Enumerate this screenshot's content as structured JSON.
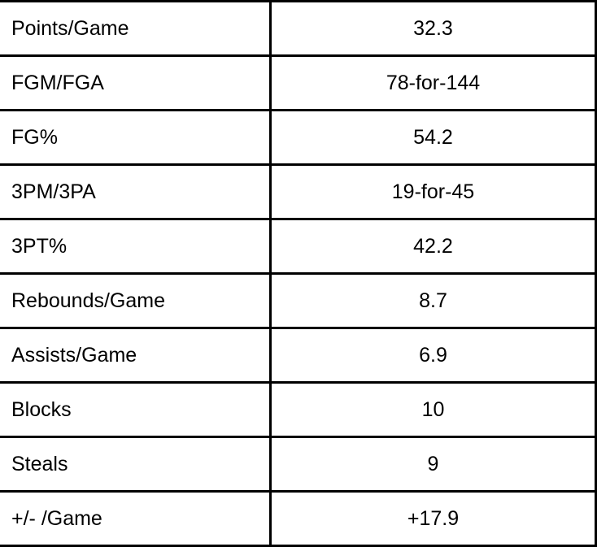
{
  "colors": {
    "border": "#000000",
    "text": "#000000",
    "background": "#ffffff"
  },
  "table": {
    "description": "player-statistics-table",
    "rows": [
      {
        "label": "Points/Game",
        "value": "32.3"
      },
      {
        "label": "FGM/FGA",
        "value": "78-for-144"
      },
      {
        "label": "FG%",
        "value": "54.2"
      },
      {
        "label": "3PM/3PA",
        "value": "19-for-45"
      },
      {
        "label": "3PT%",
        "value": "42.2"
      },
      {
        "label": "Rebounds/Game",
        "value": "8.7"
      },
      {
        "label": "Assists/Game",
        "value": "6.9"
      },
      {
        "label": "Blocks",
        "value": "10"
      },
      {
        "label": "Steals",
        "value": "9"
      },
      {
        "label": "+/- /Game",
        "value": "+17.9"
      }
    ]
  }
}
